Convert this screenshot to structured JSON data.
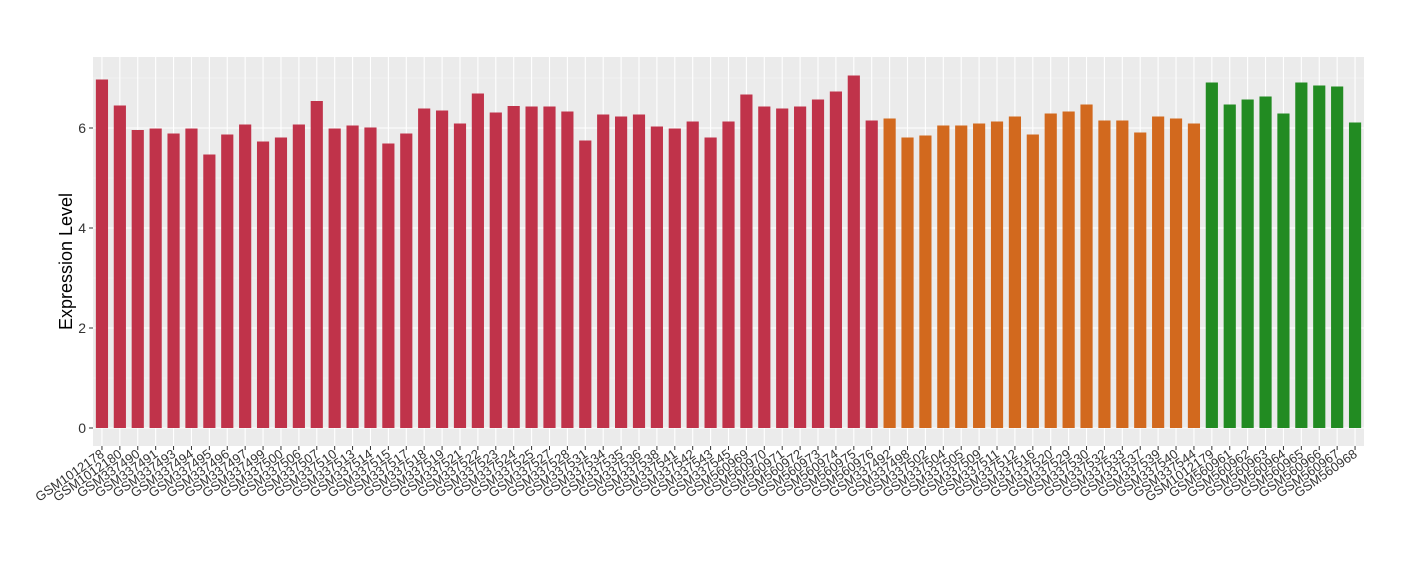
{
  "chart_data": {
    "type": "bar",
    "title": "",
    "xlabel": "",
    "ylabel": "Expression Level",
    "ylim": [
      0,
      7.2
    ],
    "yticks": [
      0,
      2,
      4,
      6
    ],
    "grid": true,
    "legend": "none",
    "colors": {
      "red": "#c0334a",
      "orange": "#d2691e",
      "green": "#228b22"
    },
    "categories": [
      "GSM1012178",
      "GSM1012180",
      "GSM337490",
      "GSM337491",
      "GSM337493",
      "GSM337494",
      "GSM337495",
      "GSM337496",
      "GSM337497",
      "GSM337499",
      "GSM337500",
      "GSM337506",
      "GSM337507",
      "GSM337510",
      "GSM337513",
      "GSM337514",
      "GSM337515",
      "GSM337517",
      "GSM337518",
      "GSM337519",
      "GSM337521",
      "GSM337522",
      "GSM337523",
      "GSM337524",
      "GSM337525",
      "GSM337527",
      "GSM337528",
      "GSM337531",
      "GSM337534",
      "GSM337535",
      "GSM337536",
      "GSM337538",
      "GSM337541",
      "GSM337542",
      "GSM337543",
      "GSM337545",
      "GSM560969",
      "GSM560970",
      "GSM560971",
      "GSM560972",
      "GSM560973",
      "GSM560974",
      "GSM560975",
      "GSM560976",
      "GSM337492",
      "GSM337498",
      "GSM337502",
      "GSM337504",
      "GSM337505",
      "GSM337509",
      "GSM337511",
      "GSM337512",
      "GSM337516",
      "GSM337520",
      "GSM337529",
      "GSM337530",
      "GSM337532",
      "GSM337533",
      "GSM337537",
      "GSM337539",
      "GSM337540",
      "GSM337544",
      "GSM1012179",
      "GSM560961",
      "GSM560962",
      "GSM560963",
      "GSM560964",
      "GSM560965",
      "GSM560966",
      "GSM560967",
      "GSM560968"
    ],
    "values": [
      6.97,
      6.45,
      5.96,
      5.99,
      5.89,
      5.99,
      5.47,
      5.87,
      6.07,
      5.73,
      5.81,
      6.07,
      6.54,
      5.99,
      6.05,
      6.01,
      5.69,
      5.89,
      6.39,
      6.35,
      6.09,
      6.69,
      6.31,
      6.44,
      6.43,
      6.43,
      6.33,
      5.75,
      6.27,
      6.23,
      6.27,
      6.03,
      5.99,
      6.13,
      5.81,
      6.13,
      6.67,
      6.43,
      6.39,
      6.43,
      6.57,
      6.73,
      7.05,
      6.15,
      6.19,
      5.81,
      5.85,
      6.05,
      6.05,
      6.09,
      6.13,
      6.23,
      5.87,
      6.29,
      6.33,
      6.47,
      6.15,
      6.15,
      5.91,
      6.23,
      6.19,
      6.09,
      6.91,
      6.47,
      6.57,
      6.63,
      6.29,
      6.91,
      6.85,
      6.83,
      6.11
    ],
    "groups": [
      "red",
      "red",
      "red",
      "red",
      "red",
      "red",
      "red",
      "red",
      "red",
      "red",
      "red",
      "red",
      "red",
      "red",
      "red",
      "red",
      "red",
      "red",
      "red",
      "red",
      "red",
      "red",
      "red",
      "red",
      "red",
      "red",
      "red",
      "red",
      "red",
      "red",
      "red",
      "red",
      "red",
      "red",
      "red",
      "red",
      "red",
      "red",
      "red",
      "red",
      "red",
      "red",
      "red",
      "red",
      "orange",
      "orange",
      "orange",
      "orange",
      "orange",
      "orange",
      "orange",
      "orange",
      "orange",
      "orange",
      "orange",
      "orange",
      "orange",
      "orange",
      "orange",
      "orange",
      "orange",
      "orange",
      "green",
      "green",
      "green",
      "green",
      "green",
      "green",
      "green",
      "green",
      "green"
    ]
  }
}
